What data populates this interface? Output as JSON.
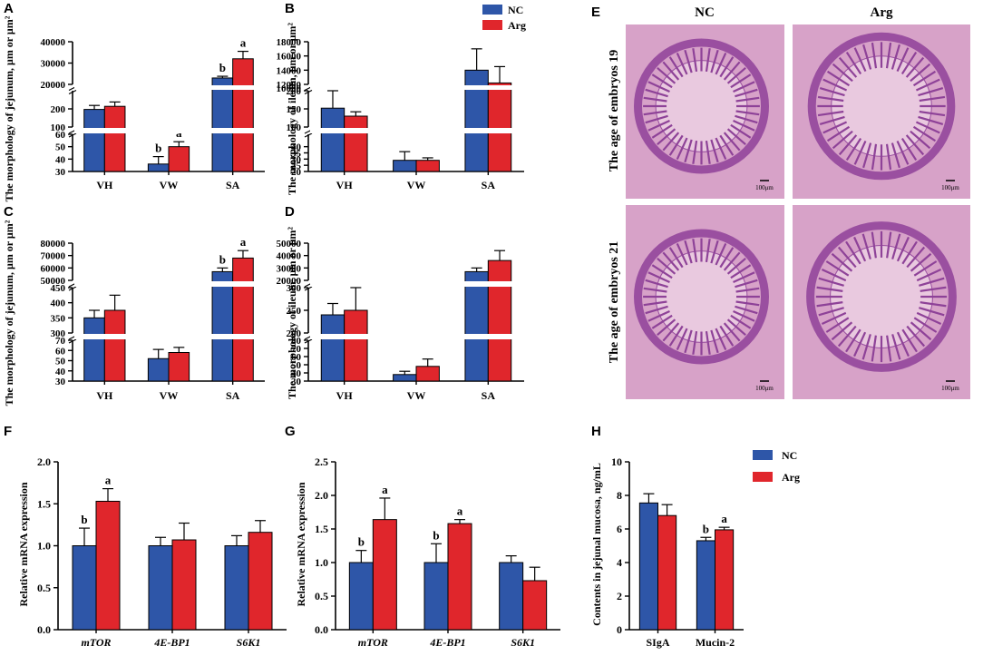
{
  "colors": {
    "nc": "#2E56A8",
    "arg": "#E0262C",
    "axis": "#000000",
    "tissue_bg": "#D7A2C8",
    "tissue": "#9A4FA0"
  },
  "legend_top": {
    "items": [
      {
        "label": "NC",
        "color": "#2E56A8"
      },
      {
        "label": "Arg",
        "color": "#E0262C"
      }
    ]
  },
  "legend_h": {
    "items": [
      {
        "label": "NC",
        "color": "#2E56A8"
      },
      {
        "label": "Arg",
        "color": "#E0262C"
      }
    ]
  },
  "micro": {
    "label": "E",
    "col_titles": [
      "NC",
      "Arg"
    ],
    "row_titles": [
      "The age of embryos 19",
      "The age of embryos 21"
    ],
    "scale": "100μm"
  },
  "chart_data": [
    {
      "id": "A",
      "label": "A",
      "type": "bar",
      "broken_axis": true,
      "ylabel": "The morphology of jejunum, μm or μm²",
      "categories": [
        "VH",
        "VW",
        "SA"
      ],
      "series": [
        {
          "name": "NC",
          "values": [
            197,
            36,
            23000
          ],
          "errors": [
            22,
            6,
            800
          ]
        },
        {
          "name": "Arg",
          "values": [
            214,
            50,
            32000
          ],
          "errors": [
            24,
            4,
            3500
          ]
        }
      ],
      "letters": [
        [
          "",
          "b",
          "b"
        ],
        [
          "",
          "a",
          "a"
        ]
      ],
      "segments": [
        {
          "range": [
            30,
            60
          ],
          "ticks": [
            30,
            40,
            50,
            60
          ]
        },
        {
          "range": [
            100,
            300
          ],
          "ticks": [
            100,
            200
          ]
        },
        {
          "range": [
            20000,
            40000
          ],
          "ticks": [
            20000,
            30000,
            40000
          ]
        }
      ]
    },
    {
      "id": "B",
      "label": "B",
      "type": "bar",
      "broken_axis": true,
      "ylabel": "The morphology of ileum, μm or μm²",
      "categories": [
        "VH",
        "VW",
        "SA"
      ],
      "series": [
        {
          "name": "NC",
          "values": [
            152,
            29,
            14000
          ],
          "errors": [
            50,
            7,
            3000
          ]
        },
        {
          "name": "Arg",
          "values": [
            130,
            29,
            12200
          ],
          "errors": [
            12,
            2,
            2300
          ]
        }
      ],
      "letters": [
        [
          "",
          "",
          ""
        ],
        [
          "",
          "",
          ""
        ]
      ],
      "segments": [
        {
          "range": [
            20,
            50
          ],
          "ticks": [
            20,
            25,
            30,
            35,
            40
          ]
        },
        {
          "range": [
            100,
            200
          ],
          "ticks": [
            100,
            150,
            200
          ]
        },
        {
          "range": [
            12000,
            18000
          ],
          "ticks": [
            12000,
            14000,
            16000,
            18000
          ]
        }
      ],
      "extra_ticks": [
        {
          "value": 10000,
          "segment": 2
        }
      ]
    },
    {
      "id": "C",
      "label": "C",
      "type": "bar",
      "broken_axis": true,
      "ylabel": "The morphology of jejunum, μm or μm²",
      "categories": [
        "VH",
        "VW",
        "SA"
      ],
      "series": [
        {
          "name": "NC",
          "values": [
            350,
            52,
            57000
          ],
          "errors": [
            25,
            9,
            3000
          ]
        },
        {
          "name": "Arg",
          "values": [
            375,
            58,
            68000
          ],
          "errors": [
            50,
            5,
            6000
          ]
        }
      ],
      "letters": [
        [
          "",
          "",
          "b"
        ],
        [
          "",
          "",
          "a"
        ]
      ],
      "segments": [
        {
          "range": [
            30,
            70
          ],
          "ticks": [
            30,
            40,
            50,
            60,
            70
          ]
        },
        {
          "range": [
            300,
            450
          ],
          "ticks": [
            300,
            350,
            400,
            450
          ]
        },
        {
          "range": [
            50000,
            80000
          ],
          "ticks": [
            50000,
            60000,
            70000,
            80000
          ]
        }
      ]
    },
    {
      "id": "D",
      "label": "D",
      "type": "bar",
      "broken_axis": true,
      "ylabel": "The morphology of ileum, μm or μm²",
      "categories": [
        "VH",
        "VW",
        "SA"
      ],
      "series": [
        {
          "name": "NC",
          "values": [
            240,
            38,
            27000
          ],
          "errors": [
            25,
            4,
            3000
          ]
        },
        {
          "name": "Arg",
          "values": [
            250,
            48,
            36000
          ],
          "errors": [
            50,
            9,
            8000
          ]
        }
      ],
      "letters": [
        [
          "",
          "",
          ""
        ],
        [
          "",
          "",
          ""
        ]
      ],
      "segments": [
        {
          "range": [
            30,
            80
          ],
          "ticks": [
            30,
            40,
            50,
            60,
            70,
            80
          ]
        },
        {
          "range": [
            200,
            300
          ],
          "ticks": [
            200,
            250,
            300
          ]
        },
        {
          "range": [
            20000,
            50000
          ],
          "ticks": [
            20000,
            30000,
            40000,
            50000
          ]
        }
      ]
    },
    {
      "id": "F",
      "label": "F",
      "type": "bar",
      "ylabel": "Relative mRNA expression",
      "categories": [
        "mTOR",
        "4E-BP1",
        "S6K1"
      ],
      "italic_categories": true,
      "series": [
        {
          "name": "NC",
          "values": [
            1.0,
            1.0,
            1.0
          ],
          "errors": [
            0.21,
            0.1,
            0.12
          ]
        },
        {
          "name": "Arg",
          "values": [
            1.53,
            1.07,
            1.16
          ],
          "errors": [
            0.15,
            0.2,
            0.14
          ]
        }
      ],
      "letters": [
        [
          "b",
          "",
          ""
        ],
        [
          "a",
          "",
          ""
        ]
      ],
      "ylim": [
        0,
        2.0
      ],
      "ticks": [
        0.0,
        0.5,
        1.0,
        1.5,
        2.0
      ]
    },
    {
      "id": "G",
      "label": "G",
      "type": "bar",
      "ylabel": "Relative mRNA expression",
      "categories": [
        "mTOR",
        "4E-BP1",
        "S6K1"
      ],
      "italic_categories": true,
      "series": [
        {
          "name": "NC",
          "values": [
            1.0,
            1.0,
            1.0
          ],
          "errors": [
            0.18,
            0.28,
            0.1
          ]
        },
        {
          "name": "Arg",
          "values": [
            1.64,
            1.58,
            0.73
          ],
          "errors": [
            0.32,
            0.06,
            0.2
          ]
        }
      ],
      "letters": [
        [
          "b",
          "b",
          ""
        ],
        [
          "a",
          "a",
          ""
        ]
      ],
      "ylim": [
        0,
        2.5
      ],
      "ticks": [
        0.0,
        0.5,
        1.0,
        1.5,
        2.0,
        2.5
      ]
    },
    {
      "id": "H",
      "label": "H",
      "type": "bar",
      "ylabel": "Contents in jejunal mucosa, ng/mL",
      "categories": [
        "SIgA",
        "Mucin-2"
      ],
      "italic_categories": false,
      "series": [
        {
          "name": "NC",
          "values": [
            7.55,
            5.3
          ],
          "errors": [
            0.55,
            0.2
          ]
        },
        {
          "name": "Arg",
          "values": [
            6.8,
            5.95
          ],
          "errors": [
            0.65,
            0.15
          ]
        }
      ],
      "letters": [
        [
          "",
          "b"
        ],
        [
          "",
          "a"
        ]
      ],
      "ylim": [
        0,
        10
      ],
      "ticks": [
        0,
        2,
        4,
        6,
        8,
        10
      ]
    }
  ]
}
